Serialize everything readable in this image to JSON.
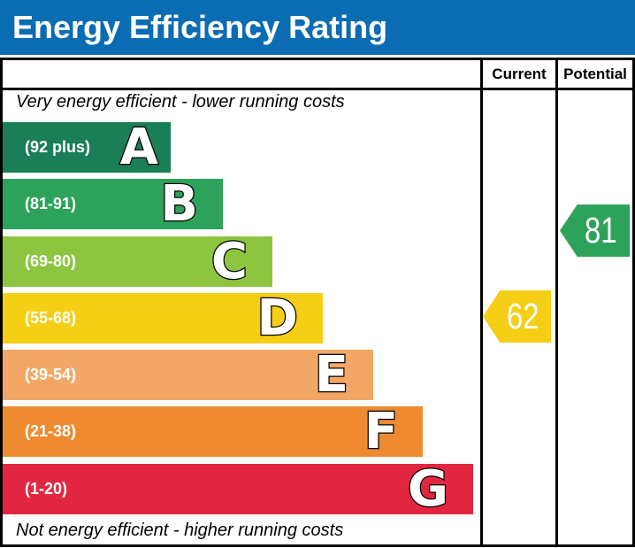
{
  "title": {
    "text": "Energy Efficiency Rating"
  },
  "colors": {
    "header_bg": "#0a6cb2",
    "border": "#000000",
    "band_a": "#1a7e57",
    "band_b": "#2da25a",
    "band_c": "#8dc540",
    "band_d": "#f5cf16",
    "band_e": "#f3a767",
    "band_f": "#ee8a30",
    "band_g": "#e22641"
  },
  "columns": {
    "current": "Current",
    "potential": "Potential"
  },
  "notes": {
    "top": "Very energy efficient - lower running costs",
    "bottom": "Not energy efficient - higher running costs"
  },
  "bands": [
    {
      "letter": "A",
      "range_label": "(92 plus)",
      "color": "#1a7e57"
    },
    {
      "letter": "B",
      "range_label": "(81-91)",
      "color": "#2da25a"
    },
    {
      "letter": "C",
      "range_label": "(69-80)",
      "color": "#8dc540"
    },
    {
      "letter": "D",
      "range_label": "(55-68)",
      "color": "#f5cf16"
    },
    {
      "letter": "E",
      "range_label": "(39-54)",
      "color": "#f3a767"
    },
    {
      "letter": "F",
      "range_label": "(21-38)",
      "color": "#ee8a30"
    },
    {
      "letter": "G",
      "range_label": "(1-20)",
      "color": "#e22641"
    }
  ],
  "ratings": {
    "current": {
      "label": "Current",
      "value": "62",
      "band": "D",
      "color": "#f5cf16"
    },
    "potential": {
      "label": "Potential",
      "value": "81",
      "band": "B",
      "color": "#2da25a"
    }
  },
  "chart_data": {
    "type": "bar",
    "title": "Energy Efficiency Rating",
    "categories": [
      "A",
      "B",
      "C",
      "D",
      "E",
      "F",
      "G"
    ],
    "band_ranges": [
      "92 plus",
      "81-91",
      "69-80",
      "55-68",
      "39-54",
      "21-38",
      "1-20"
    ],
    "band_colors": [
      "#1a7e57",
      "#2da25a",
      "#8dc540",
      "#f5cf16",
      "#f3a767",
      "#ee8a30",
      "#e22641"
    ],
    "bar_lengths_relative": [
      190,
      249,
      305,
      362,
      419,
      475,
      532
    ],
    "series": [
      {
        "name": "Current",
        "value": 62,
        "band": "D"
      },
      {
        "name": "Potential",
        "value": 81,
        "band": "B"
      }
    ],
    "annotations": [
      "Very energy efficient - lower running costs",
      "Not energy efficient - higher running costs"
    ],
    "legend_position": "none",
    "orientation": "horizontal"
  }
}
